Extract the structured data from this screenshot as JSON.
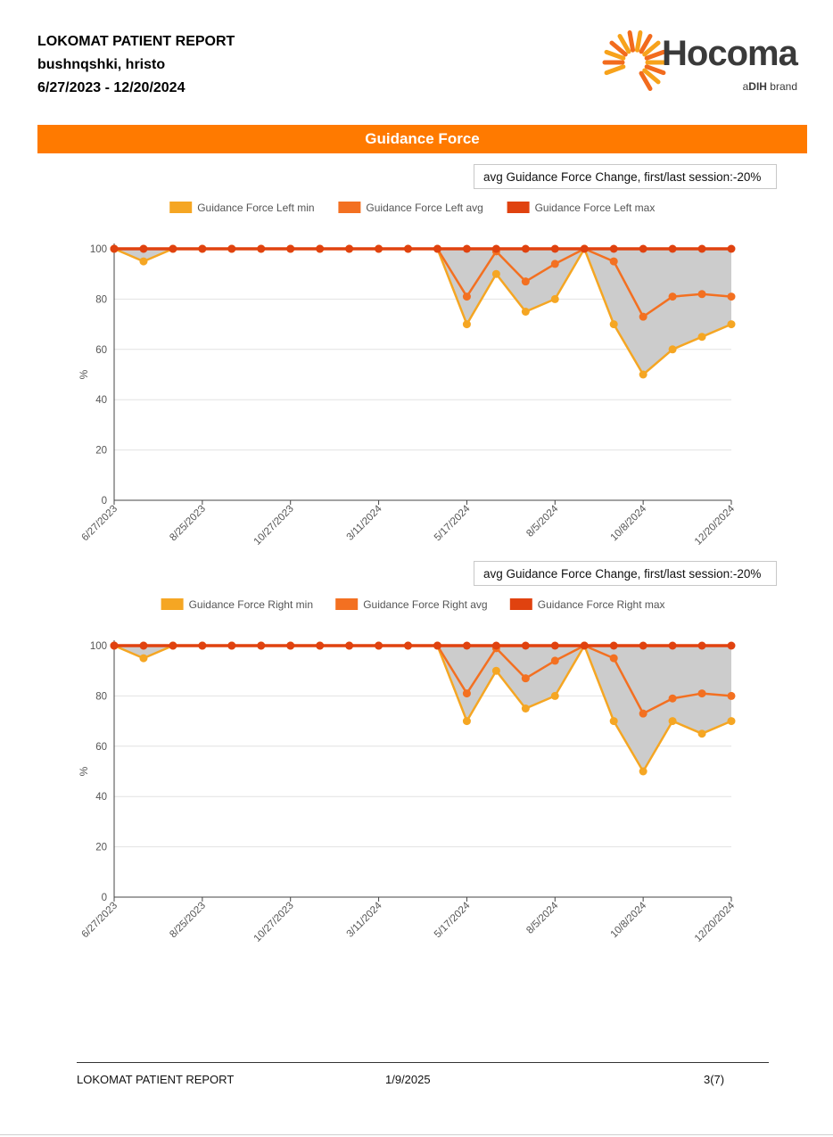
{
  "report": {
    "title": "LOKOMAT PATIENT REPORT",
    "patient": "bushnqshki, hristo",
    "date_range": "6/27/2023 - 12/20/2024"
  },
  "logo": {
    "wordmark": "Hocoma",
    "tagline_prefix": "a",
    "tagline_brand": "DIH",
    "tagline_suffix": " brand",
    "colors": [
      "#f7a21b",
      "#f26b1d"
    ]
  },
  "section": {
    "title": "Guidance Force",
    "color": "#ff7a00"
  },
  "chart_data": [
    {
      "type": "area",
      "title": "",
      "note": "avg Guidance Force Change, first/last session:-20%",
      "xlabel": "",
      "ylabel": "%",
      "ylim": [
        0,
        100
      ],
      "yticks": [
        0,
        20,
        40,
        60,
        80,
        100
      ],
      "grid": true,
      "legend_position": "top",
      "xtick_labels": [
        "6/27/2023",
        "8/25/2023",
        "10/27/2023",
        "3/11/2024",
        "5/17/2024",
        "8/5/2024",
        "10/8/2024",
        "12/20/2024"
      ],
      "xtick_indices": [
        0,
        3,
        6,
        9,
        12,
        15,
        18,
        21
      ],
      "fill_color": "#cccccc",
      "series": [
        {
          "name": "Guidance Force Left min",
          "color": "#f5a623",
          "values": [
            100,
            95,
            100,
            100,
            100,
            100,
            100,
            100,
            100,
            100,
            100,
            100,
            70,
            90,
            75,
            80,
            100,
            70,
            50,
            60,
            65,
            70
          ]
        },
        {
          "name": "Guidance Force Left avg",
          "color": "#f37021",
          "values": [
            100,
            100,
            100,
            100,
            100,
            100,
            100,
            100,
            100,
            100,
            100,
            100,
            81,
            99,
            87,
            94,
            100,
            95,
            73,
            81,
            82,
            81
          ]
        },
        {
          "name": "Guidance Force Left max",
          "color": "#e0420f",
          "values": [
            100,
            100,
            100,
            100,
            100,
            100,
            100,
            100,
            100,
            100,
            100,
            100,
            100,
            100,
            100,
            100,
            100,
            100,
            100,
            100,
            100,
            100
          ]
        }
      ]
    },
    {
      "type": "area",
      "title": "",
      "note": "avg Guidance Force Change, first/last session:-20%",
      "xlabel": "",
      "ylabel": "%",
      "ylim": [
        0,
        100
      ],
      "yticks": [
        0,
        20,
        40,
        60,
        80,
        100
      ],
      "grid": true,
      "legend_position": "top",
      "xtick_labels": [
        "6/27/2023",
        "8/25/2023",
        "10/27/2023",
        "3/11/2024",
        "5/17/2024",
        "8/5/2024",
        "10/8/2024",
        "12/20/2024"
      ],
      "xtick_indices": [
        0,
        3,
        6,
        9,
        12,
        15,
        18,
        21
      ],
      "fill_color": "#cccccc",
      "series": [
        {
          "name": "Guidance Force Right min",
          "color": "#f5a623",
          "values": [
            100,
            95,
            100,
            100,
            100,
            100,
            100,
            100,
            100,
            100,
            100,
            100,
            70,
            90,
            75,
            80,
            100,
            70,
            50,
            70,
            65,
            70
          ]
        },
        {
          "name": "Guidance Force Right avg",
          "color": "#f37021",
          "values": [
            100,
            100,
            100,
            100,
            100,
            100,
            100,
            100,
            100,
            100,
            100,
            100,
            81,
            99,
            87,
            94,
            100,
            95,
            73,
            79,
            81,
            80
          ]
        },
        {
          "name": "Guidance Force Right max",
          "color": "#e0420f",
          "values": [
            100,
            100,
            100,
            100,
            100,
            100,
            100,
            100,
            100,
            100,
            100,
            100,
            100,
            100,
            100,
            100,
            100,
            100,
            100,
            100,
            100,
            100
          ]
        }
      ]
    }
  ],
  "footer": {
    "left": "LOKOMAT PATIENT REPORT",
    "center": "1/9/2025",
    "right": "3(7)"
  }
}
